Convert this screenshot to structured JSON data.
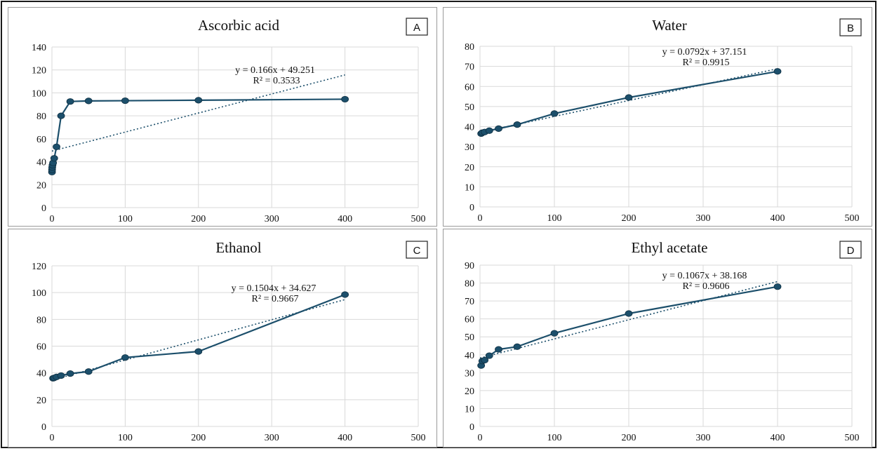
{
  "chart_data": [
    {
      "id": "A",
      "type": "line",
      "title": "Ascorbic acid",
      "panel_label": "A",
      "xlim": [
        0,
        500
      ],
      "ylim": [
        0,
        140
      ],
      "xticks": [
        0,
        100,
        200,
        300,
        400,
        500
      ],
      "yticks": [
        0,
        20,
        40,
        60,
        80,
        100,
        120,
        140
      ],
      "series": [
        {
          "x": [
            0.1,
            0.2,
            0.4,
            0.8,
            1.56,
            3.125,
            6.25,
            12.5,
            25,
            50,
            100,
            200,
            400
          ],
          "y": [
            31,
            33,
            35,
            37,
            39,
            43,
            53,
            80,
            92.5,
            93,
            93.2,
            93.6,
            94.5
          ]
        }
      ],
      "trendline": {
        "slope": 0.166,
        "intercept": 49.251,
        "x_range": [
          0,
          400
        ]
      },
      "equation": "y = 0.166x + 49.251",
      "r2": "R² = 0.3533",
      "colors": {
        "series": "#1c4f6b",
        "marker": "#1c4f6b",
        "trend": "#1c4f6b"
      }
    },
    {
      "id": "B",
      "type": "line",
      "title": "Water",
      "panel_label": "B",
      "xlim": [
        0,
        500
      ],
      "ylim": [
        0,
        80
      ],
      "xticks": [
        0,
        100,
        200,
        300,
        400,
        500
      ],
      "yticks": [
        0,
        10,
        20,
        30,
        40,
        50,
        60,
        70,
        80
      ],
      "series": [
        {
          "x": [
            1.56,
            3.125,
            6.25,
            12.5,
            25,
            50,
            100,
            200,
            400
          ],
          "y": [
            36.5,
            37,
            37.3,
            38,
            39,
            41,
            46.5,
            54.5,
            67.5
          ]
        }
      ],
      "trendline": {
        "slope": 0.0792,
        "intercept": 37.151,
        "x_range": [
          0,
          400
        ]
      },
      "equation": "y = 0.0792x + 37.151",
      "r2": "R² = 0.9915",
      "colors": {
        "series": "#1c4f6b",
        "marker": "#1c4f6b",
        "trend": "#1c4f6b"
      }
    },
    {
      "id": "C",
      "type": "line",
      "title": "Ethanol",
      "panel_label": "C",
      "xlim": [
        0,
        500
      ],
      "ylim": [
        0,
        120
      ],
      "xticks": [
        0,
        100,
        200,
        300,
        400,
        500
      ],
      "yticks": [
        0,
        20,
        40,
        60,
        80,
        100,
        120
      ],
      "series": [
        {
          "x": [
            1.56,
            3.125,
            6.25,
            12.5,
            25,
            50,
            100,
            200,
            400
          ],
          "y": [
            36,
            36.3,
            37,
            38,
            39.5,
            41,
            51.5,
            56,
            98.5
          ]
        }
      ],
      "trendline": {
        "slope": 0.1504,
        "intercept": 34.627,
        "x_range": [
          0,
          400
        ]
      },
      "equation": "y = 0.1504x + 34.627",
      "r2": "R² = 0.9667",
      "colors": {
        "series": "#1c4f6b",
        "marker": "#1c4f6b",
        "trend": "#1c4f6b"
      }
    },
    {
      "id": "D",
      "type": "line",
      "title": "Ethyl acetate",
      "panel_label": "D",
      "xlim": [
        0,
        500
      ],
      "ylim": [
        0,
        90
      ],
      "xticks": [
        0,
        100,
        200,
        300,
        400,
        500
      ],
      "yticks": [
        0,
        10,
        20,
        30,
        40,
        50,
        60,
        70,
        80,
        90
      ],
      "series": [
        {
          "x": [
            1.56,
            3.125,
            6.25,
            12.5,
            25,
            50,
            100,
            200,
            400
          ],
          "y": [
            34,
            36.5,
            37,
            39.5,
            43,
            44.5,
            52,
            63,
            78
          ]
        }
      ],
      "trendline": {
        "slope": 0.1067,
        "intercept": 38.168,
        "x_range": [
          0,
          400
        ]
      },
      "equation": "y = 0.1067x + 38.168",
      "r2": "R² = 0.9606",
      "colors": {
        "series": "#1c4f6b",
        "marker": "#1c4f6b",
        "trend": "#1c4f6b"
      }
    }
  ]
}
